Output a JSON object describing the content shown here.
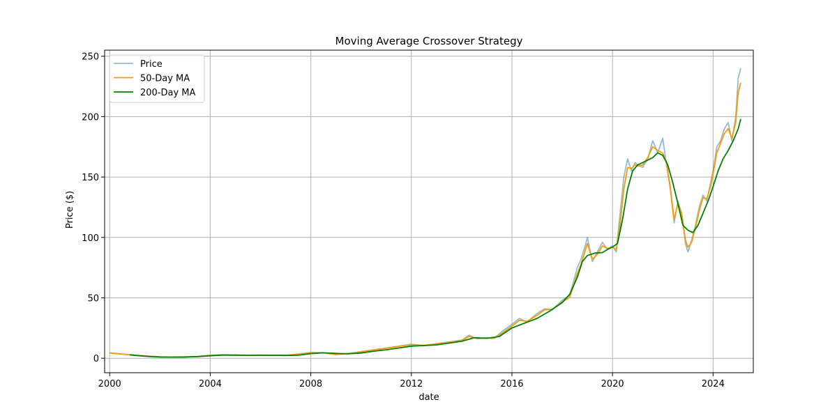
{
  "chart_data": {
    "type": "line",
    "title": "Moving Average Crossover Strategy",
    "xlabel": "date",
    "ylabel": "Price ($)",
    "xlim": [
      1999.8,
      2025.6
    ],
    "ylim": [
      -12,
      255
    ],
    "x_ticks": [
      2000,
      2004,
      2008,
      2012,
      2016,
      2020,
      2024
    ],
    "y_ticks": [
      0,
      50,
      100,
      150,
      200,
      250
    ],
    "grid": true,
    "legend": {
      "position": "top-left"
    },
    "series": [
      {
        "name": "Price",
        "color": "#1f77b4",
        "opacity": 0.5,
        "x": [
          2000.0,
          2000.5,
          2001.0,
          2001.5,
          2002.0,
          2002.5,
          2003.0,
          2003.5,
          2004.0,
          2004.5,
          2005.0,
          2005.5,
          2006.0,
          2006.5,
          2007.0,
          2007.5,
          2008.0,
          2008.5,
          2009.0,
          2009.5,
          2010.0,
          2010.5,
          2011.0,
          2011.5,
          2012.0,
          2012.5,
          2013.0,
          2013.5,
          2014.0,
          2014.3,
          2014.6,
          2015.0,
          2015.3,
          2015.6,
          2016.0,
          2016.3,
          2016.6,
          2017.0,
          2017.3,
          2017.6,
          2018.0,
          2018.3,
          2018.6,
          2018.75,
          2018.9,
          2019.0,
          2019.2,
          2019.4,
          2019.6,
          2019.8,
          2020.0,
          2020.15,
          2020.3,
          2020.45,
          2020.6,
          2020.75,
          2020.9,
          2021.0,
          2021.2,
          2021.4,
          2021.6,
          2021.8,
          2022.0,
          2022.15,
          2022.3,
          2022.45,
          2022.6,
          2022.75,
          2022.9,
          2023.0,
          2023.15,
          2023.3,
          2023.45,
          2023.6,
          2023.75,
          2023.9,
          2024.0,
          2024.15,
          2024.3,
          2024.45,
          2024.6,
          2024.75,
          2024.9,
          2025.0,
          2025.1
        ],
        "values": [
          4.5,
          3.5,
          2.5,
          1.8,
          1.2,
          1.0,
          1.1,
          1.5,
          2.5,
          2.8,
          2.3,
          2.5,
          2.6,
          2.4,
          2.3,
          3.5,
          4.8,
          4.5,
          3.0,
          4.0,
          5.5,
          7.0,
          8.5,
          10.0,
          11.5,
          10.5,
          12.0,
          13.5,
          15.0,
          19.0,
          16.0,
          17.0,
          16.5,
          22.0,
          28.0,
          33.0,
          30.0,
          37.0,
          41.0,
          40.0,
          48.0,
          52.0,
          75.0,
          82.0,
          92.0,
          100.0,
          80.0,
          88.0,
          96.0,
          90.0,
          93.0,
          88.0,
          120.0,
          150.0,
          165.0,
          155.0,
          162.0,
          160.0,
          158.0,
          165.0,
          180.0,
          170.0,
          182.0,
          160.0,
          140.0,
          112.0,
          130.0,
          120.0,
          95.0,
          88.0,
          98.0,
          110.0,
          125.0,
          135.0,
          130.0,
          145.0,
          155.0,
          175.0,
          180.0,
          190.0,
          195.0,
          180.0,
          200.0,
          232.0,
          240.0
        ]
      },
      {
        "name": "50-Day MA",
        "color": "#ff9900",
        "opacity": 1,
        "x": [
          2000.0,
          2000.5,
          2001.0,
          2001.5,
          2002.0,
          2002.5,
          2003.0,
          2003.5,
          2004.0,
          2004.5,
          2005.0,
          2005.5,
          2006.0,
          2006.5,
          2007.0,
          2007.5,
          2008.0,
          2008.5,
          2009.0,
          2009.5,
          2010.0,
          2010.5,
          2011.0,
          2011.5,
          2012.0,
          2012.5,
          2013.0,
          2013.5,
          2014.0,
          2014.3,
          2014.6,
          2015.0,
          2015.3,
          2015.6,
          2016.0,
          2016.3,
          2016.6,
          2017.0,
          2017.3,
          2017.6,
          2018.0,
          2018.3,
          2018.6,
          2018.75,
          2018.9,
          2019.0,
          2019.2,
          2019.4,
          2019.6,
          2019.8,
          2020.0,
          2020.15,
          2020.3,
          2020.45,
          2020.6,
          2020.75,
          2020.9,
          2021.0,
          2021.2,
          2021.4,
          2021.6,
          2021.8,
          2022.0,
          2022.15,
          2022.3,
          2022.45,
          2022.6,
          2022.75,
          2022.9,
          2023.0,
          2023.15,
          2023.3,
          2023.45,
          2023.6,
          2023.75,
          2023.9,
          2024.0,
          2024.15,
          2024.3,
          2024.45,
          2024.6,
          2024.75,
          2024.9,
          2025.0,
          2025.1
        ],
        "values": [
          4.2,
          3.4,
          2.4,
          1.7,
          1.2,
          1.0,
          1.1,
          1.4,
          2.4,
          2.7,
          2.4,
          2.4,
          2.5,
          2.4,
          2.3,
          3.2,
          4.5,
          4.4,
          3.2,
          3.8,
          5.2,
          6.8,
          8.2,
          9.8,
          11.0,
          10.6,
          11.8,
          13.2,
          14.5,
          18.0,
          16.5,
          16.8,
          16.5,
          20.5,
          26.5,
          31.5,
          30.5,
          35.5,
          40.0,
          40.5,
          46.5,
          50.5,
          70.0,
          78.0,
          88.0,
          95.0,
          82.0,
          86.0,
          93.0,
          91.0,
          92.0,
          90.0,
          110.0,
          140.0,
          158.0,
          157.0,
          160.0,
          159.0,
          160.0,
          166.0,
          175.0,
          172.0,
          170.0,
          162.0,
          142.0,
          115.0,
          128.0,
          120.0,
          98.0,
          92.0,
          96.0,
          108.0,
          122.0,
          133.0,
          132.0,
          142.0,
          152.0,
          170.0,
          178.0,
          186.0,
          190.0,
          182.0,
          195.0,
          220.0,
          228.0
        ]
      },
      {
        "name": "200-Day MA",
        "color": "#008000",
        "opacity": 1,
        "x": [
          2000.8,
          2001.2,
          2001.6,
          2002.0,
          2002.5,
          2003.0,
          2003.5,
          2004.0,
          2004.5,
          2005.0,
          2005.5,
          2006.0,
          2006.5,
          2007.0,
          2007.5,
          2008.0,
          2008.5,
          2009.0,
          2009.5,
          2010.0,
          2010.5,
          2011.0,
          2011.5,
          2012.0,
          2012.5,
          2013.0,
          2013.5,
          2014.0,
          2014.5,
          2015.0,
          2015.5,
          2016.0,
          2016.5,
          2017.0,
          2017.5,
          2018.0,
          2018.3,
          2018.6,
          2018.8,
          2019.0,
          2019.3,
          2019.6,
          2019.8,
          2020.0,
          2020.2,
          2020.4,
          2020.6,
          2020.8,
          2021.0,
          2021.2,
          2021.4,
          2021.6,
          2021.8,
          2022.0,
          2022.2,
          2022.4,
          2022.6,
          2022.8,
          2023.0,
          2023.2,
          2023.4,
          2023.6,
          2023.8,
          2024.0,
          2024.2,
          2024.4,
          2024.6,
          2024.8,
          2025.0,
          2025.1
        ],
        "values": [
          2.8,
          2.0,
          1.4,
          1.0,
          0.9,
          1.0,
          1.3,
          2.0,
          2.6,
          2.6,
          2.4,
          2.5,
          2.4,
          2.3,
          2.5,
          3.8,
          4.5,
          4.0,
          3.6,
          4.3,
          5.8,
          7.0,
          8.5,
          10.0,
          10.5,
          11.0,
          12.5,
          14.0,
          17.0,
          16.5,
          18.0,
          25.0,
          29.0,
          33.0,
          39.0,
          46.0,
          53.0,
          67.0,
          80.0,
          85.0,
          87.0,
          87.5,
          90.0,
          92.0,
          95.0,
          115.0,
          140.0,
          155.0,
          160.0,
          162.0,
          164.0,
          166.0,
          170.0,
          168.0,
          160.0,
          145.0,
          128.0,
          110.0,
          106.0,
          104.0,
          110.0,
          120.0,
          130.0,
          142.0,
          155.0,
          165.0,
          172.0,
          180.0,
          190.0,
          198.0
        ]
      }
    ]
  }
}
